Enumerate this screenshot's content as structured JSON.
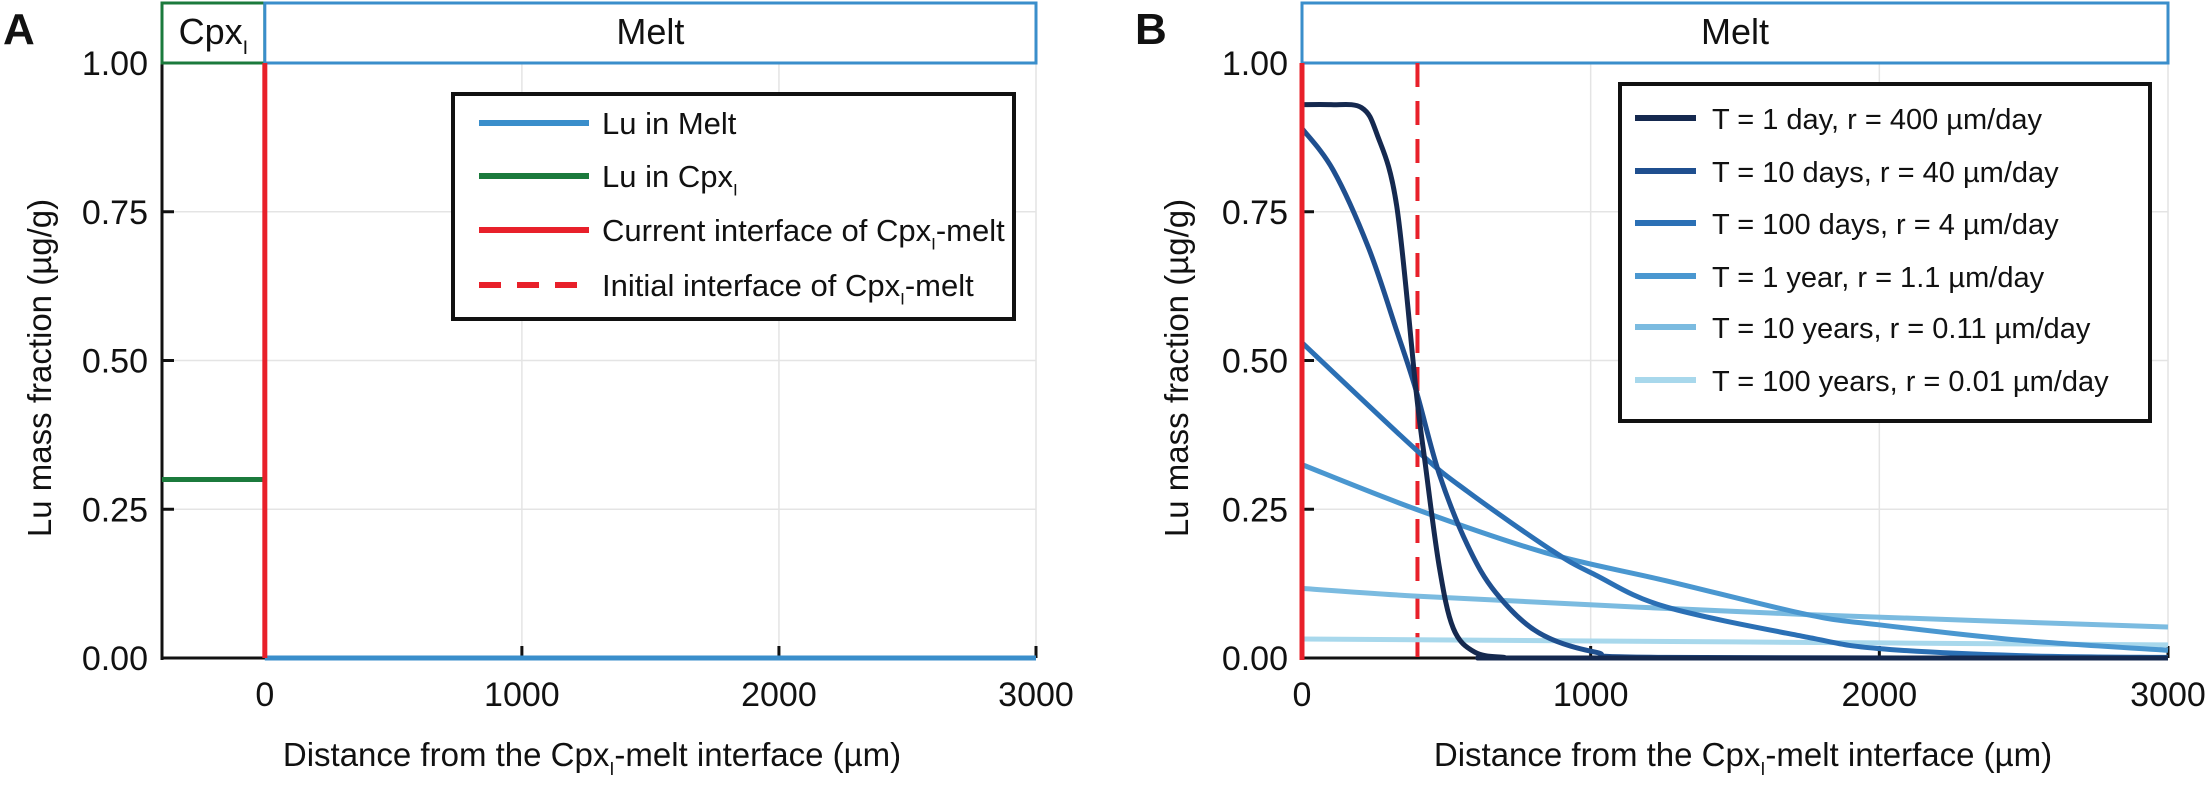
{
  "chart_data": [
    {
      "type": "line",
      "panel_label": "A",
      "header": {
        "cpx": "Cpx",
        "cpx_sub": "I",
        "melt": "Melt"
      },
      "xlabel": {
        "pre": "Distance from the Cpx",
        "sub": "I",
        "post": "-melt interface (µm)"
      },
      "ylabel": "Lu mass fraction (µg/g)",
      "xlim": [
        -400,
        3000
      ],
      "ylim": [
        0,
        1
      ],
      "xticks": [
        0,
        1000,
        2000,
        3000
      ],
      "yticks": [
        0,
        0.25,
        0.5,
        0.75,
        1.0
      ],
      "ytick_labels": [
        "0.00",
        "0.25",
        "0.50",
        "0.75",
        "1.00"
      ],
      "grid": true,
      "legend_position": "top-right",
      "series": [
        {
          "name": "Lu in Melt",
          "pre": "Lu in Melt",
          "sub": "",
          "post": "",
          "color": "#3a8ecb",
          "dash": false,
          "x": [
            0,
            3000
          ],
          "y": [
            0,
            0
          ]
        },
        {
          "name": "Lu in Cpx_I",
          "pre": "Lu in Cpx",
          "sub": "I",
          "post": "",
          "color": "#1b7a3c",
          "dash": false,
          "x": [
            -400,
            0
          ],
          "y": [
            0.3,
            0.3
          ]
        },
        {
          "name": "Current interface of Cpx_I-melt",
          "pre": "Current interface of Cpx",
          "sub": "I",
          "post": "-melt",
          "color": "#e8202a",
          "dash": false,
          "x": [
            0,
            0
          ],
          "y": [
            0,
            1
          ]
        },
        {
          "name": "Initial interface of Cpx_I-melt",
          "pre": "Initial interface of Cpx",
          "sub": "I",
          "post": "-melt",
          "color": "#e8202a",
          "dash": true,
          "x": [],
          "y": []
        }
      ]
    },
    {
      "type": "line",
      "panel_label": "B",
      "header": {
        "melt": "Melt"
      },
      "xlabel": {
        "pre": "Distance from the Cpx",
        "sub": "I",
        "post": "-melt interface (µm)"
      },
      "ylabel": "Lu mass fraction (µg/g)",
      "xlim": [
        0,
        3000
      ],
      "ylim": [
        0,
        1
      ],
      "xticks": [
        0,
        1000,
        2000,
        3000
      ],
      "yticks": [
        0,
        0.25,
        0.5,
        0.75,
        1.0
      ],
      "ytick_labels": [
        "0.00",
        "0.25",
        "0.50",
        "0.75",
        "1.00"
      ],
      "grid": true,
      "legend_position": "top-right",
      "interfaces": {
        "current_x": 0,
        "initial_x": 400,
        "color": "#e8202a"
      },
      "series": [
        {
          "name": "T = 1 day, r = 400 µm/day",
          "color": "#15294f",
          "x": [
            0,
            100,
            206,
            260,
            328,
            395,
            426,
            475,
            524,
            598,
            700,
            800,
            3000
          ],
          "y": [
            0.93,
            0.93,
            0.925,
            0.88,
            0.76,
            0.45,
            0.33,
            0.155,
            0.05,
            0.01,
            0.001,
            0,
            0
          ]
        },
        {
          "name": "T = 10 days, r = 40 µm/day",
          "color": "#1f4f8f",
          "x": [
            0,
            108,
            230,
            328,
            395,
            475,
            573,
            671,
            818,
            1015,
            1260,
            3000
          ],
          "y": [
            0.89,
            0.82,
            0.69,
            0.55,
            0.45,
            0.31,
            0.19,
            0.11,
            0.043,
            0.01,
            0.001,
            0
          ]
        },
        {
          "name": "T = 100 days, r = 4 µm/day",
          "color": "#2b70b5",
          "x": [
            0,
            395,
            573,
            868,
            1015,
            1260,
            1750,
            1995,
            2485,
            3000
          ],
          "y": [
            0.53,
            0.35,
            0.28,
            0.18,
            0.14,
            0.086,
            0.035,
            0.016,
            0.004,
            0.001
          ]
        },
        {
          "name": "T = 1 year, r = 1.1 µm/day",
          "color": "#4a97d0",
          "x": [
            0,
            395,
            843,
            1260,
            1750,
            1995,
            2485,
            3000
          ],
          "y": [
            0.325,
            0.25,
            0.177,
            0.13,
            0.073,
            0.056,
            0.03,
            0.013
          ]
        },
        {
          "name": "T = 10 years, r = 0.11 µm/day",
          "color": "#7bbbe0",
          "x": [
            0,
            395,
            1015,
            1750,
            3000
          ],
          "y": [
            0.117,
            0.104,
            0.089,
            0.073,
            0.052
          ]
        },
        {
          "name": "T = 100 years, r = 0.01 µm/day",
          "color": "#a8d8ec",
          "x": [
            0,
            1500,
            3000
          ],
          "y": [
            0.032,
            0.027,
            0.022
          ]
        }
      ]
    }
  ]
}
